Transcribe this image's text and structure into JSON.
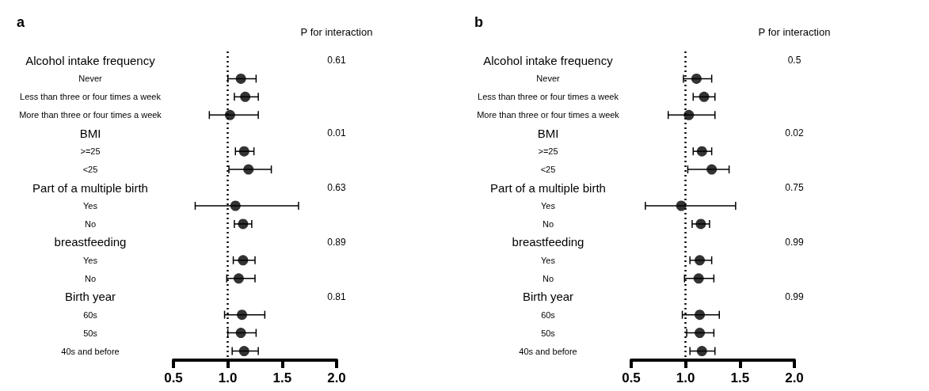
{
  "chart_data": [
    {
      "type": "scatter",
      "title": "a",
      "orientation": "horizontal",
      "marker": "circle",
      "color": "#000000",
      "grid": false,
      "categories": [
        "Alcohol intake frequency",
        "Never",
        "Less than three or four times a week",
        "More than three or four times a week",
        "BMI",
        ">=25",
        "<25",
        "Part of a multiple birth",
        "Yes",
        "No",
        "breastfeeding",
        "Yes",
        "No",
        "Birth year",
        "60s",
        "50s",
        "40s and before"
      ],
      "values": [
        null,
        1.12,
        1.16,
        1.02,
        null,
        1.15,
        1.19,
        null,
        1.07,
        1.14,
        null,
        1.14,
        1.1,
        null,
        1.13,
        1.12,
        1.15
      ],
      "errors": [
        null,
        [
          1.0,
          1.26
        ],
        [
          1.06,
          1.28
        ],
        [
          0.83,
          1.28
        ],
        null,
        [
          1.07,
          1.24
        ],
        [
          1.01,
          1.4
        ],
        null,
        [
          0.7,
          1.65
        ],
        [
          1.06,
          1.22
        ],
        null,
        [
          1.05,
          1.25
        ],
        [
          0.99,
          1.25
        ],
        null,
        [
          0.97,
          1.34
        ],
        [
          1.0,
          1.26
        ],
        [
          1.04,
          1.28
        ]
      ],
      "xlim": [
        0.5,
        2.0
      ],
      "xticks": [
        {
          "value": 0.5,
          "label": "0.5"
        },
        {
          "value": 1,
          "label": "1.0"
        },
        {
          "value": 1.5,
          "label": "1.5"
        },
        {
          "value": 2,
          "label": "2.0"
        }
      ],
      "ref_lines": [
        {
          "axis": "x",
          "value": 1,
          "line_style": "dotted",
          "color": "#000000"
        }
      ],
      "annotations": [
        "P for interaction",
        "0.61",
        "0.01",
        "0.63",
        "0.89",
        "0.81"
      ]
    },
    {
      "type": "scatter",
      "title": "b",
      "orientation": "horizontal",
      "marker": "circle",
      "color": "#000000",
      "grid": false,
      "categories": [
        "Alcohol intake frequency",
        "Never",
        "Less than three or four times a week",
        "More than three or four times a week",
        "BMI",
        ">=25",
        "<25",
        "Part of a multiple birth",
        "Yes",
        "No",
        "breastfeeding",
        "Yes",
        "No",
        "Birth year",
        "60s",
        "50s",
        "40s and before"
      ],
      "values": [
        null,
        1.1,
        1.17,
        1.03,
        null,
        1.15,
        1.24,
        null,
        0.96,
        1.14,
        null,
        1.13,
        1.12,
        null,
        1.13,
        1.13,
        1.15
      ],
      "errors": [
        null,
        [
          0.98,
          1.24
        ],
        [
          1.07,
          1.27
        ],
        [
          0.84,
          1.27
        ],
        null,
        [
          1.07,
          1.24
        ],
        [
          1.02,
          1.4
        ],
        null,
        [
          0.63,
          1.46
        ],
        [
          1.06,
          1.22
        ],
        null,
        [
          1.04,
          1.24
        ],
        [
          0.99,
          1.26
        ],
        null,
        [
          0.97,
          1.31
        ],
        [
          1.01,
          1.26
        ],
        [
          1.04,
          1.27
        ]
      ],
      "xlim": [
        0.5,
        2.0
      ],
      "xticks": [
        {
          "value": 0.5,
          "label": "0.5"
        },
        {
          "value": 1,
          "label": "1.0"
        },
        {
          "value": 1.5,
          "label": "1.5"
        },
        {
          "value": 2,
          "label": "2.0"
        }
      ],
      "ref_lines": [
        {
          "axis": "x",
          "value": 1,
          "line_style": "dotted",
          "color": "#000000"
        }
      ],
      "annotations": [
        "P for interaction",
        "0.5",
        "0.02",
        "0.75",
        "0.99",
        "0.99"
      ]
    }
  ]
}
